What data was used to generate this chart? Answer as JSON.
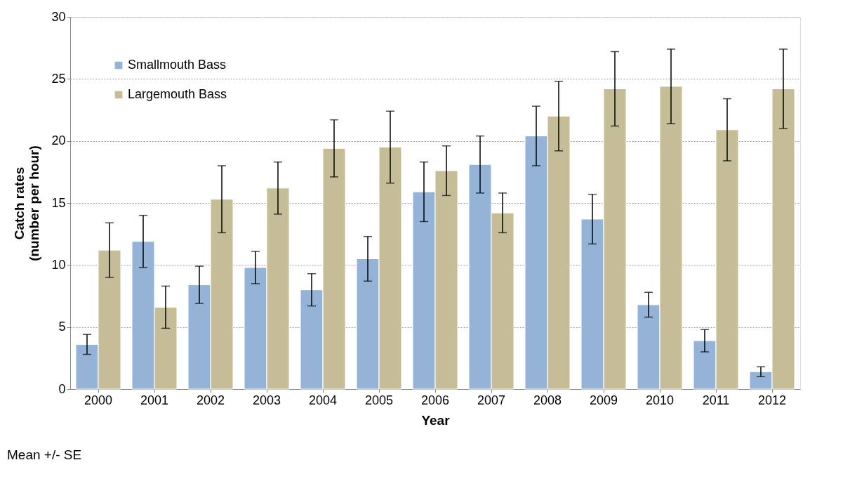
{
  "chart_data": {
    "type": "bar",
    "categories": [
      "2000",
      "2001",
      "2002",
      "2003",
      "2004",
      "2005",
      "2006",
      "2007",
      "2008",
      "2009",
      "2010",
      "2011",
      "2012"
    ],
    "series": [
      {
        "name": "Smallmouth Bass",
        "color": "#95b3d7",
        "values": [
          3.6,
          11.9,
          8.4,
          9.8,
          8.0,
          10.5,
          15.9,
          18.1,
          20.4,
          13.7,
          6.8,
          3.9,
          1.4
        ],
        "errors": [
          0.8,
          2.1,
          1.5,
          1.3,
          1.3,
          1.8,
          2.4,
          2.3,
          2.4,
          2.0,
          1.0,
          0.9,
          0.4
        ]
      },
      {
        "name": "Largemouth Bass",
        "color": "#c4bd97",
        "values": [
          11.2,
          6.6,
          15.3,
          16.2,
          19.4,
          19.5,
          17.6,
          14.2,
          22.0,
          24.2,
          24.4,
          20.9,
          24.2
        ],
        "errors": [
          2.2,
          1.7,
          2.7,
          2.1,
          2.3,
          2.9,
          2.0,
          1.6,
          2.8,
          3.0,
          3.0,
          2.5,
          3.2
        ]
      }
    ],
    "xlabel": "Year",
    "ylabel": "Catch rates\n(number per hour)",
    "ylim": [
      0,
      30
    ],
    "yticks": [
      0,
      5,
      10,
      15,
      20,
      25,
      30
    ],
    "grid": "y",
    "legend": "top left",
    "annotations": [
      "Mean +/- SE"
    ]
  }
}
